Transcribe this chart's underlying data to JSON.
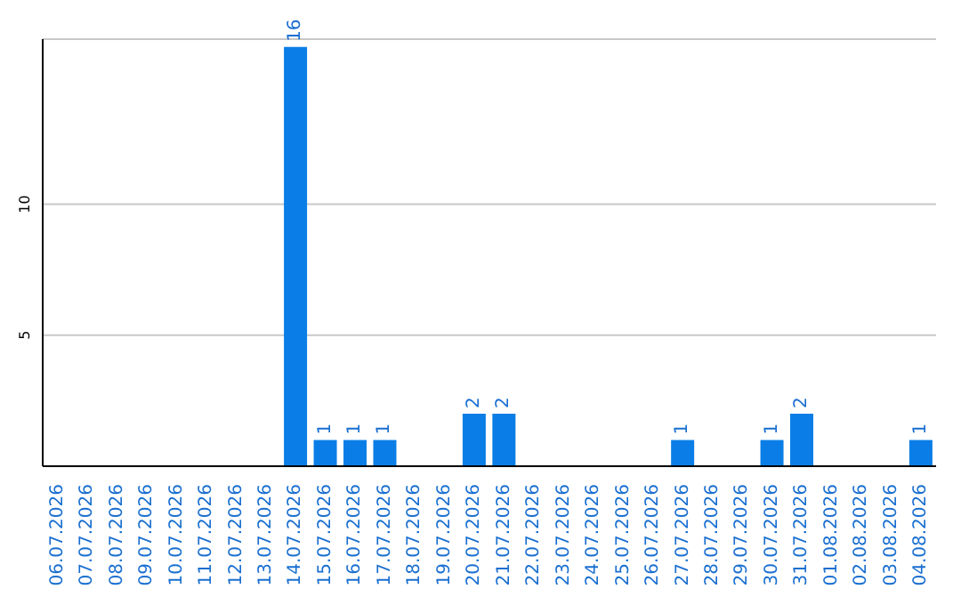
{
  "chart_data": {
    "type": "bar",
    "categories": [
      "06.07.2026",
      "07.07.2026",
      "08.07.2026",
      "09.07.2026",
      "10.07.2026",
      "11.07.2026",
      "12.07.2026",
      "13.07.2026",
      "14.07.2026",
      "15.07.2026",
      "16.07.2026",
      "17.07.2026",
      "18.07.2026",
      "19.07.2026",
      "20.07.2026",
      "21.07.2026",
      "22.07.2026",
      "23.07.2026",
      "24.07.2026",
      "25.07.2026",
      "26.07.2026",
      "27.07.2026",
      "28.07.2026",
      "29.07.2026",
      "30.07.2026",
      "31.07.2026",
      "01.08.2026",
      "02.08.2026",
      "03.08.2026",
      "04.08.2026"
    ],
    "values": [
      0,
      0,
      0,
      0,
      0,
      0,
      0,
      0,
      16,
      1,
      1,
      1,
      0,
      0,
      2,
      2,
      0,
      0,
      0,
      0,
      0,
      1,
      0,
      0,
      1,
      2,
      0,
      0,
      0,
      1
    ],
    "value_labels": [
      null,
      null,
      null,
      null,
      null,
      null,
      null,
      null,
      "16",
      "1",
      "1",
      "1",
      null,
      null,
      "2",
      "2",
      null,
      null,
      null,
      null,
      null,
      "1",
      null,
      null,
      "1",
      "2",
      null,
      null,
      null,
      "1"
    ],
    "color": "#0a7ee6",
    "ylim": [
      0,
      16.3
    ],
    "yticks": [
      5,
      10
    ],
    "grid": "y"
  }
}
